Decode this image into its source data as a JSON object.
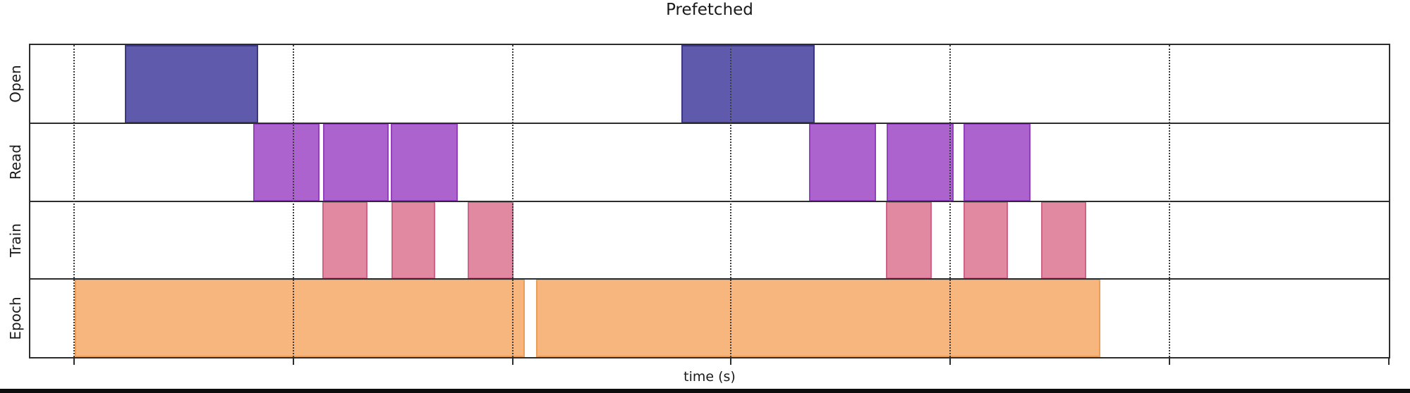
{
  "chart": {
    "title": "Prefetched",
    "xlabel": "time (s)"
  },
  "style": {
    "background": "#ffffff",
    "axis_color": "#2d2d2d",
    "grid_color": "#3c3c3c",
    "text_color": "#1a1a1a",
    "bottom_bar_color": "#0d0d0d"
  },
  "chart_data": {
    "type": "bar",
    "subtype": "gantt_timeline",
    "title": "Prefetched",
    "xlabel": "time (s)",
    "ylabel": "",
    "row_labels": [
      "Open",
      "Read",
      "Train",
      "Epoch"
    ],
    "legend": null,
    "x_unit": "fraction_of_visible_time_axis",
    "x_axis": {
      "range": [
        0,
        1
      ],
      "tick_labels_visible": false,
      "gridlines": [
        0.0322,
        0.1936,
        0.355,
        0.5158,
        0.6772,
        0.8386
      ],
      "ticks": [
        0.0322,
        0.1936,
        0.355,
        0.5158,
        0.6772,
        0.8386,
        1.0
      ],
      "grid_style": "dotted"
    },
    "series": [
      {
        "name": "Open",
        "fill": "#5F5AAC",
        "edge": "#3C3782",
        "bars": [
          [
            0.0695,
            0.1676
          ],
          [
            0.479,
            0.5776
          ]
        ]
      },
      {
        "name": "Read",
        "fill": "#AC63CE",
        "edge": "#9240BE",
        "bars": [
          [
            0.164,
            0.2128
          ],
          [
            0.2154,
            0.2636
          ],
          [
            0.2652,
            0.3145
          ],
          [
            0.5734,
            0.6227
          ],
          [
            0.6305,
            0.6798
          ],
          [
            0.6871,
            0.7364
          ]
        ]
      },
      {
        "name": "Train",
        "fill": "#E089A0",
        "edge": "#CE6287",
        "bars": [
          [
            0.2148,
            0.2481
          ],
          [
            0.2657,
            0.2979
          ],
          [
            0.3217,
            0.3555
          ],
          [
            0.63,
            0.6637
          ],
          [
            0.6871,
            0.7198
          ],
          [
            0.7442,
            0.7774
          ]
        ]
      },
      {
        "name": "Epoch",
        "fill": "#F7B67D",
        "edge": "#EF9C55",
        "bars": [
          [
            0.0327,
            0.3638
          ],
          [
            0.3721,
            0.7878
          ]
        ]
      }
    ]
  }
}
